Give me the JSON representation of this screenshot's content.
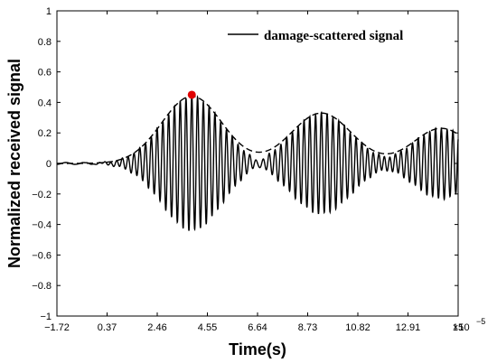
{
  "chart_data": {
    "type": "line",
    "xlabel": "Time(s)",
    "ylabel": "Normalized received signal",
    "x_multiplier": "×10",
    "x_exponent": "−5",
    "xlim": [
      -1.72,
      15
    ],
    "ylim": [
      -1,
      1
    ],
    "x_ticks": [
      -1.72,
      0.37,
      2.46,
      4.55,
      6.64,
      8.73,
      10.82,
      12.91,
      15
    ],
    "x_tick_labels": [
      "−1.72",
      "0.37",
      "2.46",
      "4.55",
      "6.64",
      "8.73",
      "10.82",
      "12.91",
      "15"
    ],
    "y_ticks": [
      -1,
      -0.8,
      -0.6,
      -0.4,
      -0.2,
      0,
      0.2,
      0.4,
      0.6,
      0.8,
      1
    ],
    "y_tick_labels": [
      "−1",
      "−0.8",
      "−0.6",
      "−0.4",
      "−0.2",
      "0",
      "0.2",
      "0.4",
      "0.6",
      "0.8",
      "1"
    ],
    "grid": false,
    "legend_position": "top-right",
    "series": [
      {
        "name": "damage-scattered signal",
        "style": "solid",
        "color": "#000000",
        "signal_frequency_per_unit": 4.15,
        "wave_packets": [
          {
            "center": 3.9,
            "amplitude": 0.44,
            "sigma": 1.25
          },
          {
            "center": 9.3,
            "amplitude": 0.33,
            "sigma": 1.25
          },
          {
            "center": 14.3,
            "amplitude": 0.23,
            "sigma": 1.15
          }
        ]
      },
      {
        "name": "envelope",
        "style": "dashed",
        "color": "#000000"
      }
    ],
    "highlight_point": {
      "x": 3.9,
      "y": 0.45,
      "color": "#e00000"
    }
  }
}
